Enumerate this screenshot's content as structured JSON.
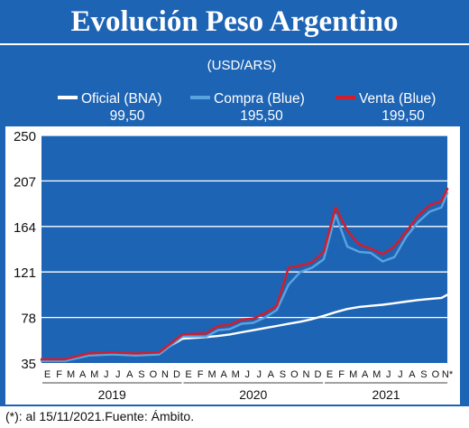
{
  "header": {
    "title": "Evolución Peso Argentino"
  },
  "footnote": "(*): al 15/11/2021.Fuente: Ámbito.",
  "chart_data": {
    "type": "line",
    "unit_label": "(USD/ARS)",
    "ylim": [
      35,
      250
    ],
    "y_ticks": [
      "250",
      "207",
      "164",
      "121",
      "78",
      "35"
    ],
    "y_tick_values": [
      250,
      207,
      164,
      121,
      78,
      35
    ],
    "grid": true,
    "legend_position": "top",
    "month_labels": {
      "2019": [
        "E",
        "F",
        "M",
        "A",
        "M",
        "J",
        "J",
        "A",
        "S",
        "O",
        "N",
        "D"
      ],
      "2020": [
        "E",
        "F",
        "M",
        "A",
        "M",
        "J",
        "J",
        "A",
        "S",
        "O",
        "N",
        "D"
      ],
      "2021": [
        "E",
        "F",
        "M",
        "A",
        "M",
        "J",
        "J",
        "A",
        "S",
        "O",
        "N*"
      ]
    },
    "years": [
      "2019",
      "2020",
      "2021"
    ],
    "x": [
      0,
      2,
      4,
      6,
      8,
      10,
      12,
      14,
      15,
      16,
      17,
      18,
      19,
      20,
      21,
      22,
      23,
      24,
      25,
      26,
      27,
      28,
      29,
      30,
      31,
      32,
      33,
      34,
      34.5
    ],
    "series": [
      {
        "name": "Oficial (BNA)",
        "last_value": "99,50",
        "color": "#ffffff",
        "values": [
          37.5,
          37.5,
          42.5,
          44.5,
          42.5,
          45,
          58,
          59.5,
          60.5,
          62,
          64,
          66,
          68,
          70,
          72,
          74,
          76.5,
          79.5,
          83,
          86,
          88,
          89,
          90,
          91.5,
          93,
          94.5,
          95.5,
          96.5,
          99.5
        ]
      },
      {
        "name": "Compra (Blue)",
        "last_value": "195,50",
        "color": "#5aa3e0",
        "values": [
          37,
          37,
          42,
          43,
          42,
          43,
          60,
          60,
          66,
          67,
          72,
          73,
          78,
          85,
          109,
          121,
          125,
          133,
          175,
          145,
          140,
          139,
          131,
          135,
          154,
          168,
          178,
          182,
          195.5
        ]
      },
      {
        "name": "Venta (Blue)",
        "last_value": "199,50",
        "color": "#d01e2e",
        "values": [
          38.5,
          38.5,
          44,
          45,
          44,
          45,
          62,
          63,
          70,
          71,
          76,
          77,
          82,
          89,
          125,
          127,
          130,
          140,
          182,
          160,
          147,
          143,
          138,
          145,
          159,
          174,
          184,
          188,
          199.5
        ]
      }
    ]
  }
}
